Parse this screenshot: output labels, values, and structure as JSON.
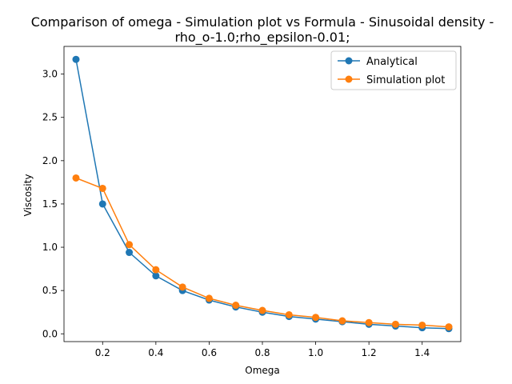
{
  "chart_data": {
    "type": "line",
    "title_line1": "Comparison of omega - Simulation plot vs Formula - Sinusoidal density -",
    "title_line2": "rho_o-1.0;rho_epsilon-0.01;",
    "xlabel": "Omega",
    "ylabel": "Viscosity",
    "xlim": [
      0.055,
      1.545
    ],
    "ylim": [
      -0.09,
      3.32
    ],
    "x_ticks": [
      0.2,
      0.4,
      0.6,
      0.8,
      1.0,
      1.2,
      1.4
    ],
    "x_tick_labels": [
      "0.2",
      "0.4",
      "0.6",
      "0.8",
      "1.0",
      "1.2",
      "1.4"
    ],
    "y_ticks": [
      0.0,
      0.5,
      1.0,
      1.5,
      2.0,
      2.5,
      3.0
    ],
    "y_tick_labels": [
      "0.0",
      "0.5",
      "1.0",
      "1.5",
      "2.0",
      "2.5",
      "3.0"
    ],
    "x": [
      0.1,
      0.2,
      0.3,
      0.4,
      0.5,
      0.6,
      0.7,
      0.8,
      0.9,
      1.0,
      1.1,
      1.2,
      1.3,
      1.4,
      1.5
    ],
    "series": [
      {
        "name": "Analytical",
        "color": "#1f77b4",
        "values": [
          3.17,
          1.5,
          0.94,
          0.67,
          0.5,
          0.39,
          0.31,
          0.25,
          0.2,
          0.17,
          0.14,
          0.11,
          0.09,
          0.07,
          0.06
        ]
      },
      {
        "name": "Simulation plot",
        "color": "#ff7f0e",
        "values": [
          1.8,
          1.68,
          1.03,
          0.74,
          0.54,
          0.41,
          0.33,
          0.27,
          0.22,
          0.19,
          0.15,
          0.13,
          0.11,
          0.1,
          0.08
        ]
      }
    ],
    "grid": false,
    "legend_position": "top-right"
  }
}
